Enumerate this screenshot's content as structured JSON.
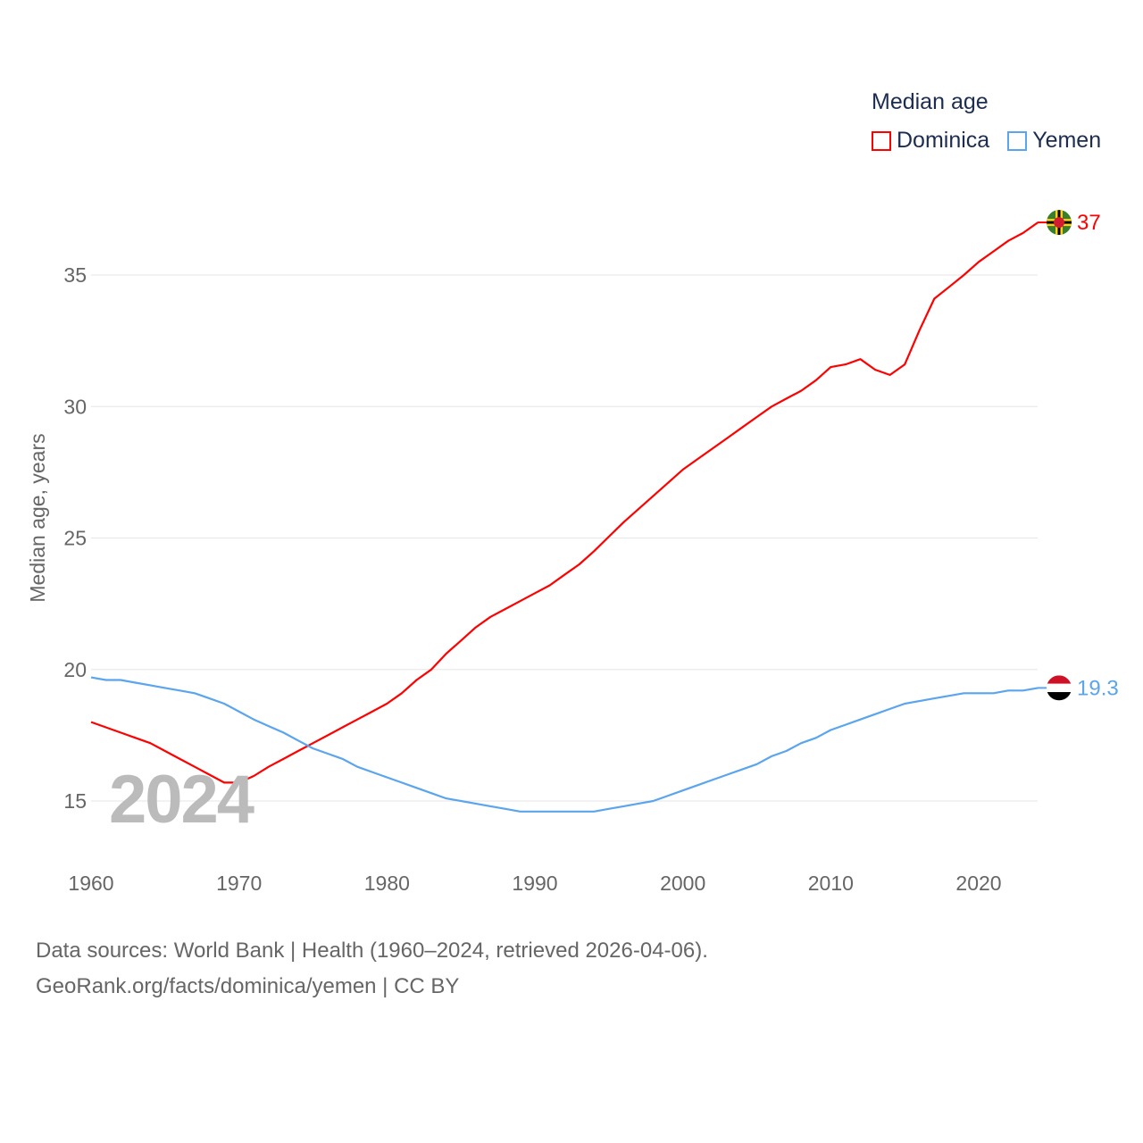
{
  "chart_data": {
    "type": "line",
    "title": "Median age",
    "ylabel": "Median age, years",
    "xlabel": "",
    "xlim": [
      1960,
      2024
    ],
    "ylim": [
      13,
      39
    ],
    "xticks": [
      1960,
      1970,
      1980,
      1990,
      2000,
      2010,
      2020
    ],
    "yticks": [
      15,
      20,
      25,
      30,
      35
    ],
    "grid": true,
    "legend_position": "top-right",
    "current_year_label": "2024",
    "x_start": 1960,
    "series": [
      {
        "name": "Dominica",
        "color": "#ff0000",
        "end_label": "37",
        "values": [
          18.0,
          17.8,
          17.6,
          17.4,
          17.2,
          16.9,
          16.6,
          16.3,
          16.0,
          15.7,
          15.7,
          15.95,
          16.3,
          16.6,
          16.9,
          17.2,
          17.5,
          17.8,
          18.1,
          18.4,
          18.7,
          19.1,
          19.6,
          20.0,
          20.6,
          21.1,
          21.6,
          22.0,
          22.3,
          22.6,
          22.9,
          23.2,
          23.6,
          24.0,
          24.5,
          25.05,
          25.6,
          26.1,
          26.6,
          27.1,
          27.6,
          28.0,
          28.4,
          28.8,
          29.2,
          29.6,
          30.0,
          30.3,
          30.6,
          31.0,
          31.5,
          31.6,
          31.8,
          31.4,
          31.2,
          31.6,
          32.9,
          34.1,
          34.55,
          35.0,
          35.5,
          35.9,
          36.3,
          36.6,
          37.0
        ]
      },
      {
        "name": "Yemen",
        "color": "#5ba4ee",
        "end_label": "19.3",
        "values": [
          19.7,
          19.6,
          19.6,
          19.5,
          19.4,
          19.3,
          19.2,
          19.1,
          18.9,
          18.7,
          18.4,
          18.1,
          17.85,
          17.6,
          17.3,
          17.0,
          16.8,
          16.6,
          16.3,
          16.1,
          15.9,
          15.7,
          15.5,
          15.3,
          15.1,
          15.0,
          14.9,
          14.8,
          14.7,
          14.6,
          14.6,
          14.6,
          14.6,
          14.6,
          14.6,
          14.7,
          14.8,
          14.9,
          15.0,
          15.2,
          15.4,
          15.6,
          15.8,
          16.0,
          16.2,
          16.4,
          16.7,
          16.9,
          17.2,
          17.4,
          17.7,
          17.9,
          18.1,
          18.3,
          18.5,
          18.7,
          18.8,
          18.9,
          19.0,
          19.1,
          19.1,
          19.1,
          19.2,
          19.2,
          19.3
        ]
      }
    ]
  },
  "source_line1": "Data sources: World Bank | Health (1960–2024, retrieved 2026-04-06).",
  "source_line2": "GeoRank.org/facts/dominica/yemen | CC BY"
}
